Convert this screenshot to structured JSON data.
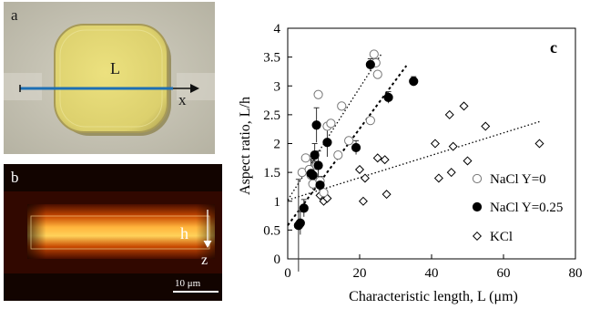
{
  "panel_a": {
    "letter": "a",
    "l_label": "L",
    "x_label": "x",
    "colors": {
      "background": "#c9c6b6",
      "droplet_fill": "#e3d877",
      "droplet_rim": "#9e9252",
      "line": "#1d6fb4",
      "arrow": "#111111"
    }
  },
  "panel_b": {
    "letter": "b",
    "h_label": "h",
    "z_label": "z",
    "scale_bar_label": "10 μm",
    "colors": {
      "background": "#120400",
      "glow_outer": "#a02a00",
      "glow_inner": "#ffd25a",
      "text": "#ffffff"
    }
  },
  "chart_data": {
    "type": "scatter",
    "panel_letter": "c",
    "xlabel": "Characteristic length, L (μm)",
    "ylabel": "Aspect ratio, L/h",
    "xlim": [
      0,
      80
    ],
    "ylim": [
      0,
      4
    ],
    "x_ticks": [
      "0",
      "20",
      "40",
      "60",
      "80"
    ],
    "y_ticks": [
      "0",
      "0.5",
      "1",
      "1.5",
      "2",
      "2.5",
      "3",
      "3.5",
      "4"
    ],
    "legend_placement": "right",
    "grid": false,
    "series": [
      {
        "name": "NaCl Y=0",
        "marker": "open-circle",
        "points": [
          [
            4,
            1.5
          ],
          [
            5,
            1.75
          ],
          [
            6,
            1.55
          ],
          [
            6.5,
            1.45
          ],
          [
            7,
            1.3
          ],
          [
            8,
            1.62
          ],
          [
            8.5,
            2.85
          ],
          [
            9,
            1.35
          ],
          [
            10,
            1.15
          ],
          [
            11,
            2.3
          ],
          [
            12,
            2.35
          ],
          [
            14,
            1.8
          ],
          [
            15,
            2.65
          ],
          [
            17,
            2.05
          ],
          [
            23,
            2.4
          ],
          [
            24,
            3.55
          ],
          [
            24.5,
            3.4
          ],
          [
            25,
            3.2
          ]
        ],
        "trendline": [
          [
            0,
            1.02
          ],
          [
            26,
            3.55
          ]
        ]
      },
      {
        "name": "NaCl Y=0.25",
        "marker": "filled-circle",
        "points": [
          [
            3,
            0.58
          ],
          [
            3.5,
            0.62
          ],
          [
            4.5,
            0.88
          ],
          [
            6.5,
            1.48
          ],
          [
            7,
            1.45
          ],
          [
            7.5,
            1.8
          ],
          [
            8,
            2.32
          ],
          [
            8.5,
            1.62
          ],
          [
            9,
            1.28
          ],
          [
            11,
            2.02
          ],
          [
            19,
            1.93
          ],
          [
            23,
            3.37
          ],
          [
            28,
            2.8
          ],
          [
            35,
            3.08
          ]
        ],
        "error_bars": [
          0.8,
          0.2,
          0.15,
          0.25,
          0.25,
          0.2,
          0.3,
          0.25,
          0.15,
          0.25,
          0.12,
          0.1,
          0.1,
          0.08
        ],
        "trendline": [
          [
            0,
            0.58
          ],
          [
            33,
            3.35
          ]
        ]
      },
      {
        "name": "KCl",
        "marker": "open-diamond",
        "points": [
          [
            9,
            1.1
          ],
          [
            10,
            1.0
          ],
          [
            11,
            1.05
          ],
          [
            20,
            1.55
          ],
          [
            21,
            1.0
          ],
          [
            21.5,
            1.4
          ],
          [
            25,
            1.75
          ],
          [
            27,
            1.72
          ],
          [
            27.5,
            1.12
          ],
          [
            41,
            2.0
          ],
          [
            42,
            1.4
          ],
          [
            45,
            2.5
          ],
          [
            45.5,
            1.5
          ],
          [
            46,
            1.95
          ],
          [
            49,
            2.65
          ],
          [
            50,
            1.7
          ],
          [
            55,
            2.3
          ],
          [
            70,
            2.0
          ]
        ],
        "trendline": [
          [
            0,
            1.02
          ],
          [
            70,
            2.38
          ]
        ]
      }
    ]
  }
}
